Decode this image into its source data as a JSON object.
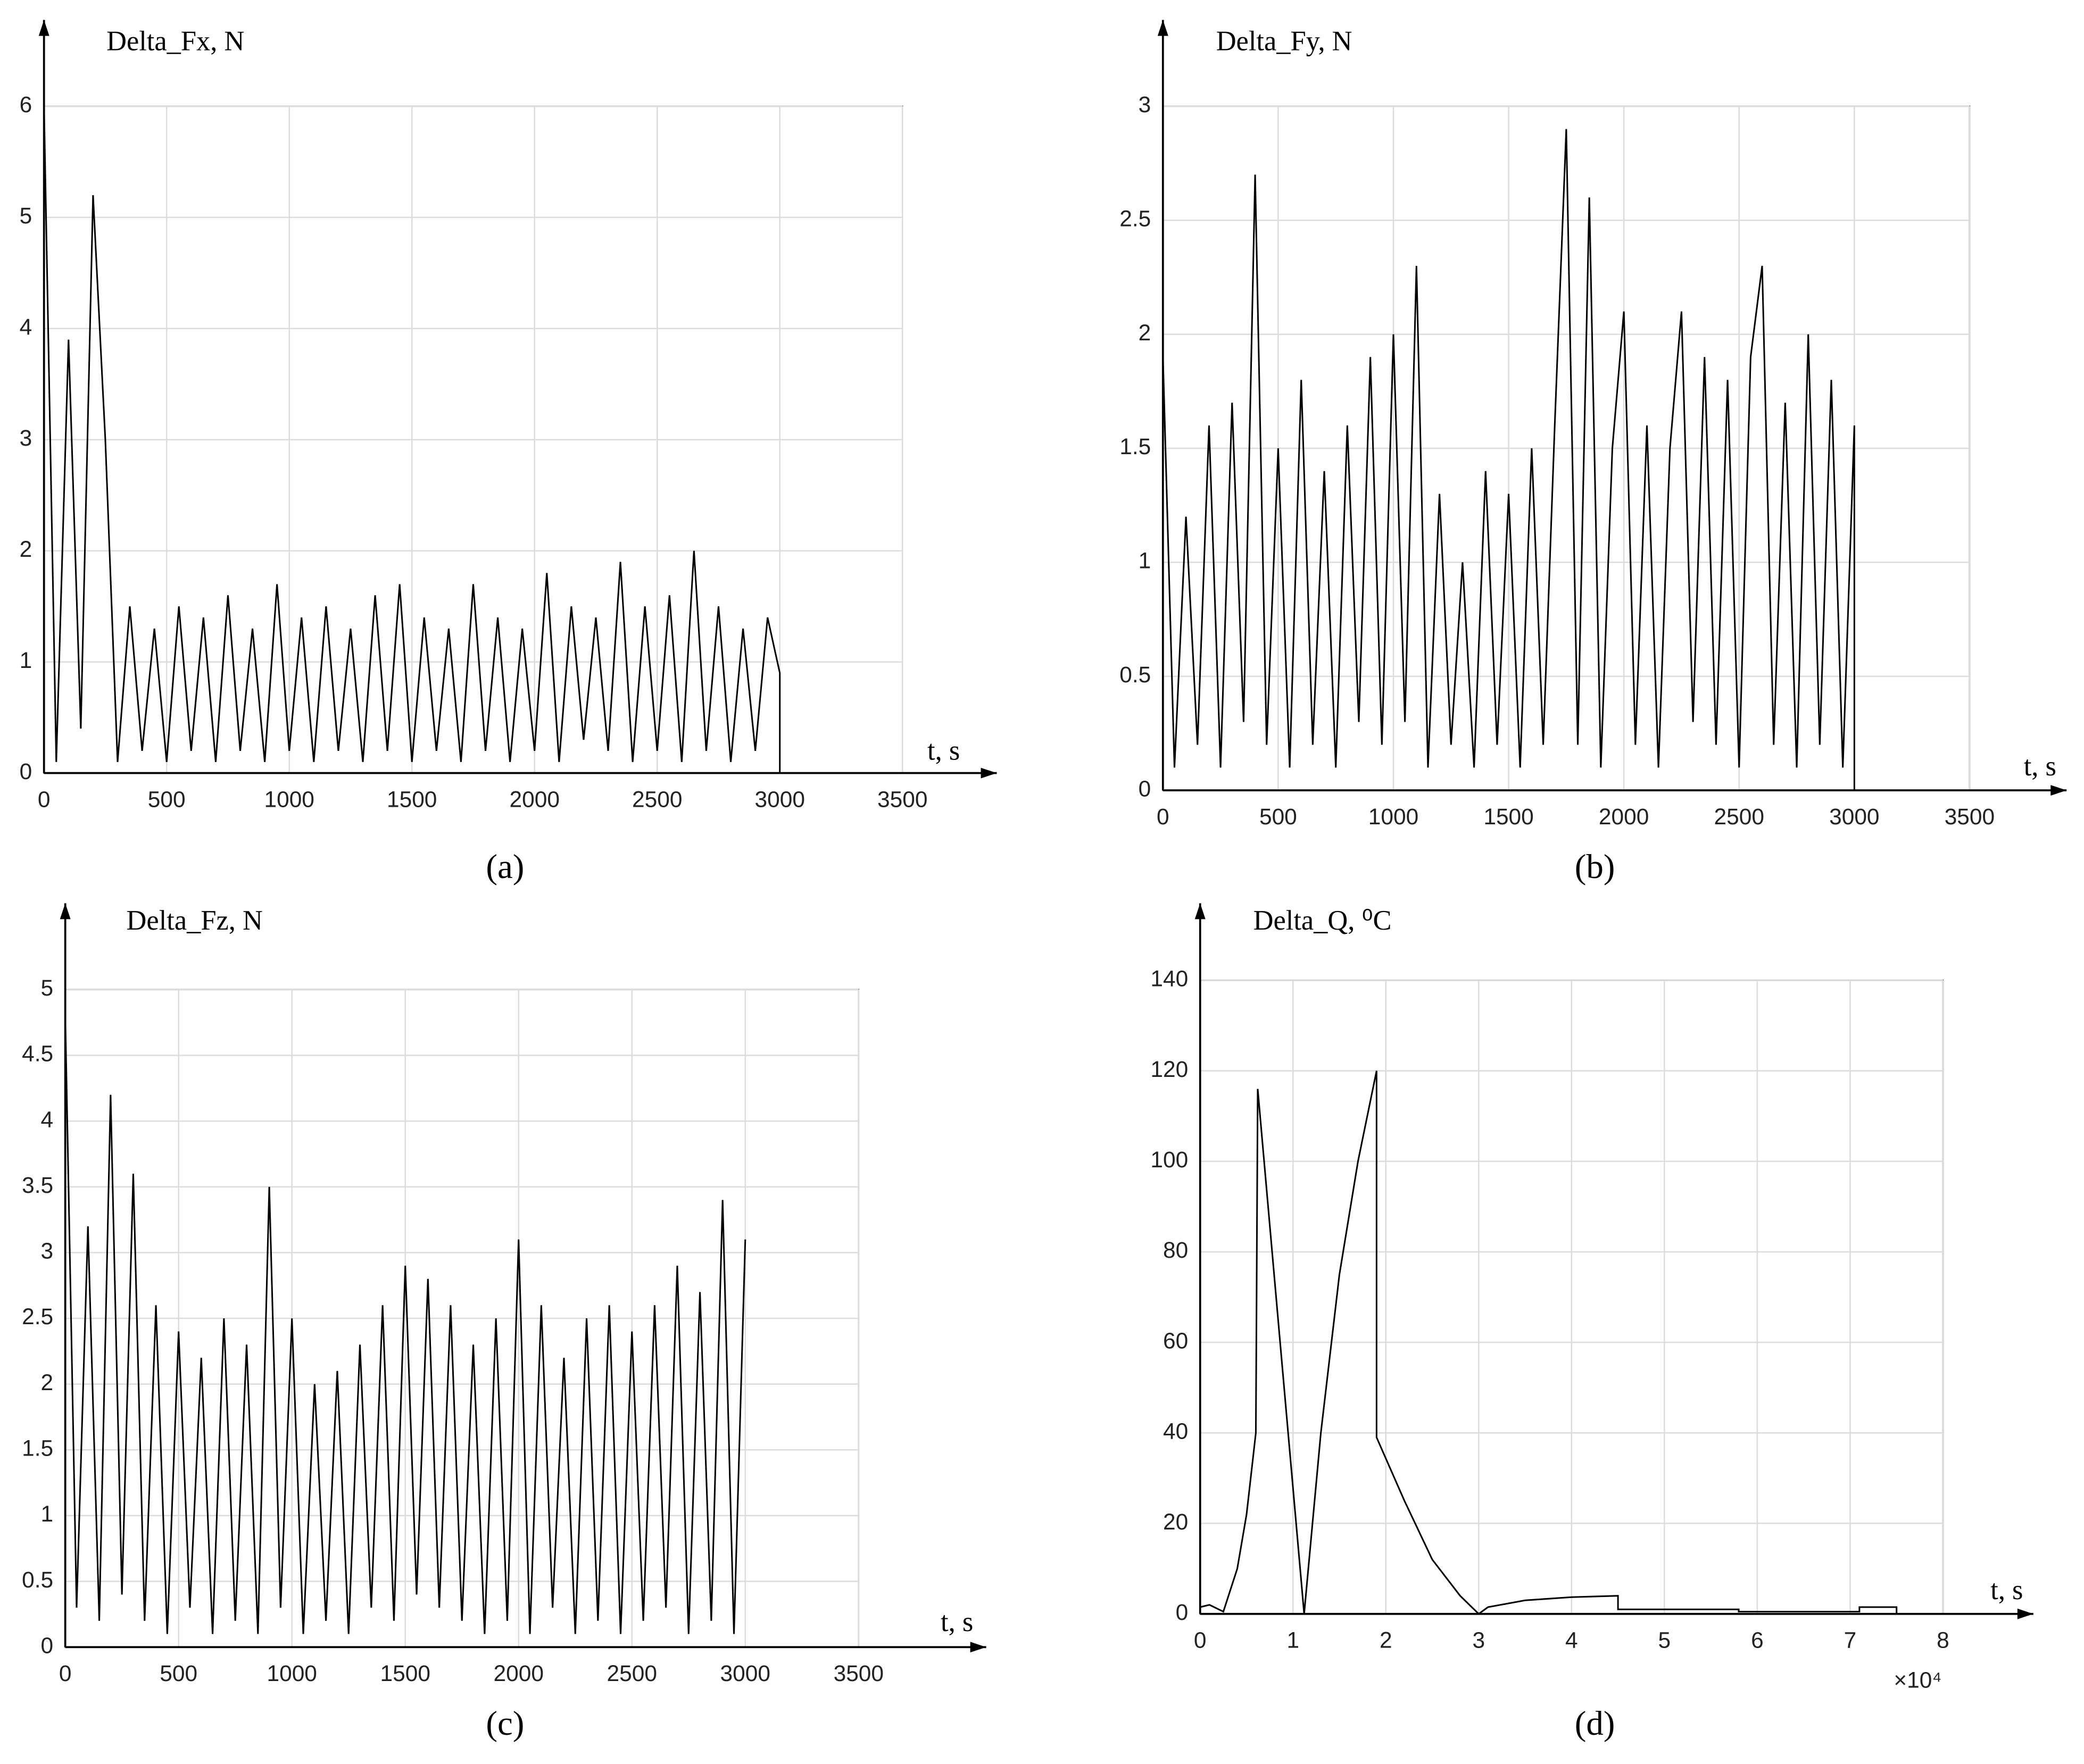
{
  "chart_data": [
    {
      "type": "line",
      "title": "Delta_Fx, N",
      "x_label": "t, s",
      "caption": "(a)",
      "xlim": [
        0,
        3500
      ],
      "xticks": [
        0,
        500,
        1000,
        1500,
        2000,
        2500,
        3000,
        3500
      ],
      "ylim": [
        0,
        6
      ],
      "yticks": [
        0,
        1,
        2,
        3,
        4,
        5,
        6
      ],
      "grid": true,
      "series": [
        {
          "color": "#000000",
          "x": [
            0,
            50,
            100,
            150,
            200,
            250,
            300,
            350,
            400,
            450,
            500,
            550,
            600,
            650,
            700,
            750,
            800,
            850,
            900,
            950,
            1000,
            1050,
            1100,
            1150,
            1200,
            1250,
            1300,
            1350,
            1400,
            1450,
            1500,
            1550,
            1600,
            1650,
            1700,
            1750,
            1800,
            1850,
            1900,
            1950,
            2000,
            2050,
            2100,
            2150,
            2200,
            2250,
            2300,
            2350,
            2400,
            2450,
            2500,
            2550,
            2600,
            2650,
            2700,
            2750,
            2800,
            2850,
            2900,
            2950,
            3000,
            3000,
            3500
          ],
          "values": [
            6.0,
            0.1,
            3.9,
            0.4,
            5.2,
            3.0,
            0.1,
            1.5,
            0.2,
            1.3,
            0.1,
            1.5,
            0.2,
            1.4,
            0.1,
            1.6,
            0.2,
            1.3,
            0.1,
            1.7,
            0.2,
            1.4,
            0.1,
            1.5,
            0.2,
            1.3,
            0.1,
            1.6,
            0.2,
            1.7,
            0.1,
            1.4,
            0.2,
            1.3,
            0.1,
            1.7,
            0.2,
            1.4,
            0.1,
            1.3,
            0.2,
            1.8,
            0.1,
            1.5,
            0.3,
            1.4,
            0.2,
            1.9,
            0.1,
            1.5,
            0.2,
            1.6,
            0.1,
            2.0,
            0.2,
            1.5,
            0.1,
            1.3,
            0.2,
            1.4,
            0.9,
            0,
            0
          ]
        }
      ]
    },
    {
      "type": "line",
      "title": "Delta_Fy, N",
      "x_label": "t, s",
      "caption": "(b)",
      "xlim": [
        0,
        3500
      ],
      "xticks": [
        0,
        500,
        1000,
        1500,
        2000,
        2500,
        3000,
        3500
      ],
      "ylim": [
        0,
        3
      ],
      "yticks": [
        0,
        0.5,
        1,
        1.5,
        2,
        2.5,
        3
      ],
      "grid": true,
      "series": [
        {
          "color": "#000000",
          "x": [
            0,
            50,
            100,
            150,
            200,
            250,
            300,
            350,
            400,
            450,
            500,
            550,
            600,
            650,
            700,
            750,
            800,
            850,
            900,
            950,
            1000,
            1050,
            1100,
            1150,
            1200,
            1250,
            1300,
            1350,
            1400,
            1450,
            1500,
            1550,
            1600,
            1650,
            1700,
            1750,
            1800,
            1850,
            1900,
            1950,
            2000,
            2050,
            2100,
            2150,
            2200,
            2250,
            2300,
            2350,
            2400,
            2450,
            2500,
            2550,
            2600,
            2650,
            2700,
            2750,
            2800,
            2850,
            2900,
            2950,
            3000,
            3000,
            3500
          ],
          "values": [
            1.9,
            0.1,
            1.2,
            0.2,
            1.6,
            0.1,
            1.7,
            0.3,
            2.7,
            0.2,
            1.5,
            0.1,
            1.8,
            0.2,
            1.4,
            0.1,
            1.6,
            0.3,
            1.9,
            0.2,
            2.0,
            0.3,
            2.3,
            0.1,
            1.3,
            0.2,
            1.0,
            0.1,
            1.4,
            0.2,
            1.3,
            0.1,
            1.5,
            0.2,
            1.6,
            2.9,
            0.2,
            2.6,
            0.1,
            1.5,
            2.1,
            0.2,
            1.6,
            0.1,
            1.5,
            2.1,
            0.3,
            1.9,
            0.2,
            1.8,
            0.1,
            1.9,
            2.3,
            0.2,
            1.7,
            0.1,
            2.0,
            0.2,
            1.8,
            0.1,
            1.6,
            0,
            0
          ]
        }
      ]
    },
    {
      "type": "line",
      "title": "Delta_Fz, N",
      "x_label": "t, s",
      "caption": "(c)",
      "xlim": [
        0,
        3500
      ],
      "xticks": [
        0,
        500,
        1000,
        1500,
        2000,
        2500,
        3000,
        3500
      ],
      "ylim": [
        0,
        5
      ],
      "yticks": [
        0,
        0.5,
        1,
        1.5,
        2,
        2.5,
        3,
        3.5,
        4,
        4.5,
        5
      ],
      "grid": true,
      "series": [
        {
          "color": "#000000",
          "x": [
            0,
            50,
            100,
            150,
            200,
            250,
            300,
            350,
            400,
            450,
            500,
            550,
            600,
            650,
            700,
            750,
            800,
            850,
            900,
            950,
            1000,
            1050,
            1100,
            1150,
            1200,
            1250,
            1300,
            1350,
            1400,
            1450,
            1500,
            1550,
            1600,
            1650,
            1700,
            1750,
            1800,
            1850,
            1900,
            1950,
            2000,
            2050,
            2100,
            2150,
            2200,
            2250,
            2300,
            2350,
            2400,
            2450,
            2500,
            2550,
            2600,
            2650,
            2700,
            2750,
            2800,
            2850,
            2900,
            2950,
            3000
          ],
          "values": [
            4.8,
            0.3,
            3.2,
            0.2,
            4.2,
            0.4,
            3.6,
            0.2,
            2.6,
            0.1,
            2.4,
            0.3,
            2.2,
            0.1,
            2.5,
            0.2,
            2.3,
            0.1,
            3.5,
            0.3,
            2.5,
            0.1,
            2.0,
            0.2,
            2.1,
            0.1,
            2.3,
            0.3,
            2.6,
            0.2,
            2.9,
            0.4,
            2.8,
            0.3,
            2.6,
            0.2,
            2.3,
            0.1,
            2.5,
            0.2,
            3.1,
            0.1,
            2.6,
            0.3,
            2.2,
            0.1,
            2.5,
            0.2,
            2.6,
            0.1,
            2.4,
            0.2,
            2.6,
            0.3,
            2.9,
            0.1,
            2.7,
            0.2,
            3.4,
            0.1,
            3.1
          ]
        }
      ]
    },
    {
      "type": "line",
      "title": "Delta_Q, ⁰C",
      "x_label": "t, s",
      "caption": "(d)",
      "x_multiplier": "×10⁴",
      "xlim": [
        0,
        8
      ],
      "xticks": [
        0,
        1,
        2,
        3,
        4,
        5,
        6,
        7,
        8
      ],
      "ylim": [
        0,
        140
      ],
      "yticks": [
        0,
        20,
        40,
        60,
        80,
        100,
        120,
        140
      ],
      "grid": true,
      "series": [
        {
          "color": "#000000",
          "x": [
            0,
            0.1,
            0.25,
            0.4,
            0.5,
            0.6,
            0.62,
            1.12,
            1.3,
            1.5,
            1.7,
            1.9,
            1.9,
            2.2,
            2.5,
            2.8,
            3.0,
            3.1,
            3.5,
            4.0,
            4.5,
            4.5,
            5.8,
            5.8,
            7.1,
            7.1,
            7.5,
            7.5,
            8
          ],
          "values": [
            1.5,
            2,
            0.5,
            10,
            22,
            40,
            116,
            0,
            40,
            75,
            100,
            120,
            39,
            25,
            12,
            4,
            0,
            1.5,
            3,
            3.7,
            4,
            1,
            1,
            0.5,
            0.5,
            1.5,
            1.5,
            0,
            0
          ]
        }
      ]
    }
  ]
}
